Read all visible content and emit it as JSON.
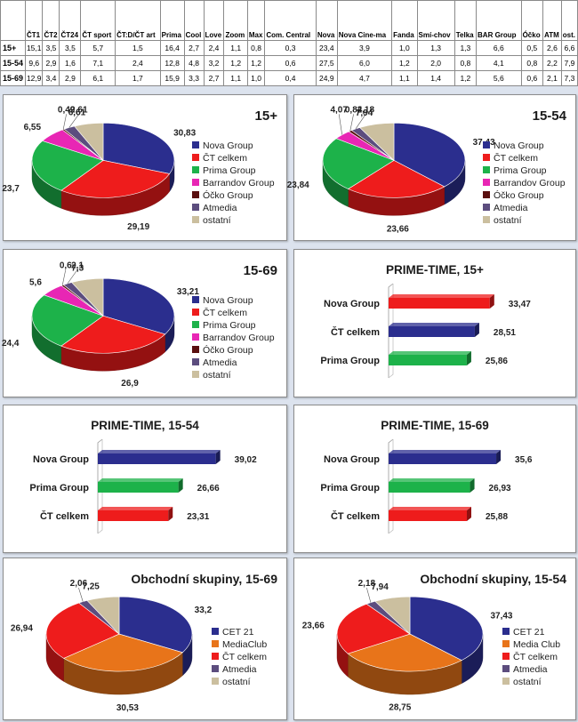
{
  "table": {
    "columns": [
      "ČT1",
      "ČT2",
      "ČT24",
      "ČT sport",
      "ČT:D/ČT art",
      "Prima",
      "Cool",
      "Love",
      "Zoom",
      "Max",
      "Com. Central",
      "Nova",
      "Nova Cine-ma",
      "Fanda",
      "Smí-chov",
      "Telka",
      "BAR Group",
      "Óčko",
      "ATM",
      "ost."
    ],
    "rows": [
      {
        "label": "15+",
        "values": [
          "15,1",
          "3,5",
          "3,5",
          "5,7",
          "1,5",
          "16,4",
          "2,7",
          "2,4",
          "1,1",
          "0,8",
          "0,3",
          "23,4",
          "3,9",
          "1,0",
          "1,3",
          "1,3",
          "6,6",
          "0,5",
          "2,6",
          "6,6"
        ]
      },
      {
        "label": "15-54",
        "values": [
          "9,6",
          "2,9",
          "1,6",
          "7,1",
          "2,4",
          "12,8",
          "4,8",
          "3,2",
          "1,2",
          "1,2",
          "0,6",
          "27,5",
          "6,0",
          "1,2",
          "2,0",
          "0,8",
          "4,1",
          "0,8",
          "2,2",
          "7,9"
        ]
      },
      {
        "label": "15-69",
        "values": [
          "12,9",
          "3,4",
          "2,9",
          "6,1",
          "1,7",
          "15,9",
          "3,3",
          "2,7",
          "1,1",
          "1,0",
          "0,4",
          "24,9",
          "4,7",
          "1,1",
          "1,4",
          "1,2",
          "5,6",
          "0,6",
          "2,1",
          "7,3"
        ]
      }
    ]
  },
  "colors": {
    "nova": "#2b2e8e",
    "ct": "#ee1c1c",
    "prima": "#1db24a",
    "barrandov": "#e826b4",
    "ocko": "#5a0f0f",
    "atmedia": "#5c4d7e",
    "ostatni": "#cbbf9f",
    "mediaclub": "#e8741a"
  },
  "chart_data": [
    {
      "type": "pie",
      "title": "15+",
      "legend": [
        "Nova Group",
        "ČT celkem",
        "Prima Group",
        "Barrandov Group",
        "Óčko Group",
        "Atmedia",
        "ostatní"
      ],
      "labels": [
        "30,83",
        "29,19",
        "23,7",
        "6,55",
        "0,49",
        "2,61",
        "6,61"
      ],
      "values": [
        30.83,
        29.19,
        23.7,
        6.55,
        0.49,
        2.61,
        6.61
      ],
      "color_keys": [
        "nova",
        "ct",
        "prima",
        "barrandov",
        "ocko",
        "atmedia",
        "ostatni"
      ]
    },
    {
      "type": "pie",
      "title": "15-54",
      "legend": [
        "Nova Group",
        "ČT celkem",
        "Prima Group",
        "Barrandov Group",
        "Óčko Group",
        "Atmedia",
        "ostatní"
      ],
      "labels": [
        "37,43",
        "23,66",
        "23,84",
        "4,07",
        "0,84",
        "2,18",
        "7,94"
      ],
      "values": [
        37.43,
        23.66,
        23.84,
        4.07,
        0.84,
        2.18,
        7.94
      ],
      "color_keys": [
        "nova",
        "ct",
        "prima",
        "barrandov",
        "ocko",
        "atmedia",
        "ostatni"
      ]
    },
    {
      "type": "pie",
      "title": "15-69",
      "legend": [
        "Nova Group",
        "ČT celkem",
        "Prima Group",
        "Barrandov Group",
        "Óčko Group",
        "Atmedia",
        "ostatní"
      ],
      "labels": [
        "33,21",
        "26,9",
        "24,4",
        "5,6",
        "0,6",
        "2,1",
        "7,3"
      ],
      "values": [
        33.21,
        26.9,
        24.4,
        5.6,
        0.6,
        2.1,
        7.3
      ],
      "color_keys": [
        "nova",
        "ct",
        "prima",
        "barrandov",
        "ocko",
        "atmedia",
        "ostatni"
      ]
    },
    {
      "type": "bar",
      "title": "PRIME-TIME, 15+",
      "categories": [
        "Nova Group",
        "ČT celkem",
        "Prima Group"
      ],
      "values": [
        33.47,
        28.51,
        25.86
      ],
      "labels": [
        "33,47",
        "28,51",
        "25,86"
      ],
      "color_keys": [
        "ct",
        "nova",
        "prima"
      ],
      "xlim": [
        0,
        40
      ]
    },
    {
      "type": "bar",
      "title": "PRIME-TIME, 15-54",
      "categories": [
        "Nova Group",
        "Prima Group",
        "ČT celkem"
      ],
      "values": [
        39.02,
        26.66,
        23.31
      ],
      "labels": [
        "39,02",
        "26,66",
        "23,31"
      ],
      "color_keys": [
        "nova",
        "prima",
        "ct"
      ],
      "xlim": [
        0,
        40
      ]
    },
    {
      "type": "bar",
      "title": "PRIME-TIME, 15-69",
      "categories": [
        "Nova Group",
        "Prima Group",
        "ČT celkem"
      ],
      "values": [
        35.6,
        26.93,
        25.88
      ],
      "labels": [
        "35,6",
        "26,93",
        "25,88"
      ],
      "color_keys": [
        "nova",
        "prima",
        "ct"
      ],
      "xlim": [
        0,
        40
      ]
    },
    {
      "type": "pie",
      "title": "Obchodní skupiny, 15-69",
      "legend": [
        "CET 21",
        "MediaClub",
        "ČT celkem",
        "Atmedia",
        "ostatní"
      ],
      "labels": [
        "33,2",
        "30,53",
        "26,94",
        "2,06",
        "7,25"
      ],
      "values": [
        33.2,
        30.53,
        26.94,
        2.06,
        7.25
      ],
      "color_keys": [
        "nova",
        "mediaclub",
        "ct",
        "atmedia",
        "ostatni"
      ]
    },
    {
      "type": "pie",
      "title": "Obchodní skupiny, 15-54",
      "legend": [
        "CET 21",
        "Media Club",
        "ČT celkem",
        "Atmedia",
        "ostatní"
      ],
      "labels": [
        "37,43",
        "28,75",
        "23,66",
        "2,18",
        "7,94"
      ],
      "values": [
        37.43,
        28.75,
        23.66,
        2.18,
        7.94
      ],
      "color_keys": [
        "nova",
        "mediaclub",
        "ct",
        "atmedia",
        "ostatni"
      ]
    }
  ]
}
